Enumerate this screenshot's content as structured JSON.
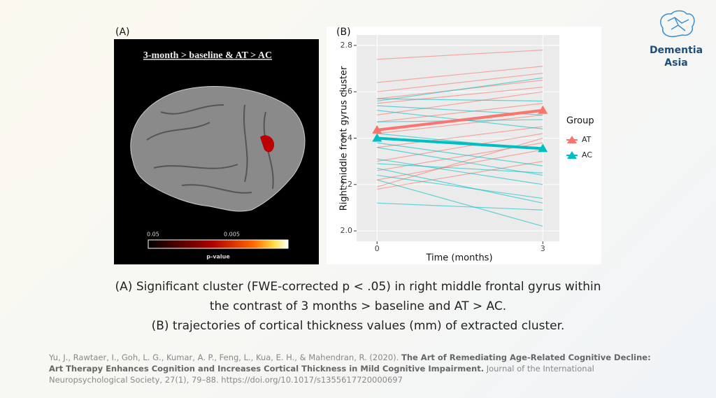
{
  "logo": {
    "line1": "Dementia",
    "line2": "Asia"
  },
  "panel_a": {
    "label": "(A)",
    "title": "3-month > baseline & AT > AC",
    "colorbar_low": "0.05",
    "colorbar_mid": "0.005",
    "colorbar_title": "p-value"
  },
  "chart_data": {
    "type": "line",
    "panel_label": "(B)",
    "y_label": "Right middle front gyrus cluster",
    "x_label": "Time (months)",
    "x": [
      0,
      3
    ],
    "xlim": [
      -0.37,
      3.3
    ],
    "xticks": [
      0,
      3
    ],
    "ylim": [
      1.955,
      2.845
    ],
    "yticks": [
      {
        "value": 2,
        "label": "2.0"
      },
      2.2,
      2.4,
      2.6,
      2.8
    ],
    "grid": true,
    "legend_title": "Group",
    "legend": "right",
    "series": [
      {
        "name": "AT",
        "color": "#f8766d",
        "values": [
          2.435,
          2.52
        ],
        "individuals": [
          [
            2.74,
            2.78
          ],
          [
            2.64,
            2.71
          ],
          [
            2.6,
            2.68
          ],
          [
            2.57,
            2.65
          ],
          [
            2.55,
            2.62
          ],
          [
            2.5,
            2.6
          ],
          [
            2.47,
            2.55
          ],
          [
            2.42,
            2.5
          ],
          [
            2.36,
            2.45
          ],
          [
            2.3,
            2.42
          ],
          [
            2.26,
            2.38
          ],
          [
            2.22,
            2.35
          ],
          [
            2.19,
            2.4
          ],
          [
            2.18,
            2.3
          ]
        ]
      },
      {
        "name": "AC",
        "color": "#00bfc4",
        "values": [
          2.4,
          2.355
        ],
        "individuals": [
          [
            2.57,
            2.56
          ],
          [
            2.56,
            2.66
          ],
          [
            2.54,
            2.5
          ],
          [
            2.52,
            2.44
          ],
          [
            2.47,
            2.48
          ],
          [
            2.42,
            2.35
          ],
          [
            2.38,
            2.28
          ],
          [
            2.31,
            2.2
          ],
          [
            2.29,
            2.25
          ],
          [
            2.27,
            2.12
          ],
          [
            2.24,
            2.14
          ],
          [
            2.22,
            2.02
          ],
          [
            2.12,
            2.09
          ],
          [
            2.36,
            2.24
          ]
        ]
      }
    ]
  },
  "caption": [
    "(A) Significant cluster (FWE-corrected p < .05) in right middle frontal gyrus within",
    "the contrast of 3 months > baseline and AT > AC.",
    "(B) trajectories of cortical thickness values (mm) of extracted cluster."
  ],
  "citation": {
    "authors": "Yu, J., Rawtaer, I., Goh, L. G., Kumar, A. P., Feng, L., Kua, E. H., & Mahendran, R. (2020). ",
    "title": "The Art of Remediating Age-Related Cognitive Decline: Art Therapy Enhances Cognition and Increases Cortical Thickness in Mild Cognitive Impairment.",
    "source": " Journal of the International Neuropsychological Society, 27(1), 79–88. https://doi.org/10.1017/s1355617720000697"
  }
}
